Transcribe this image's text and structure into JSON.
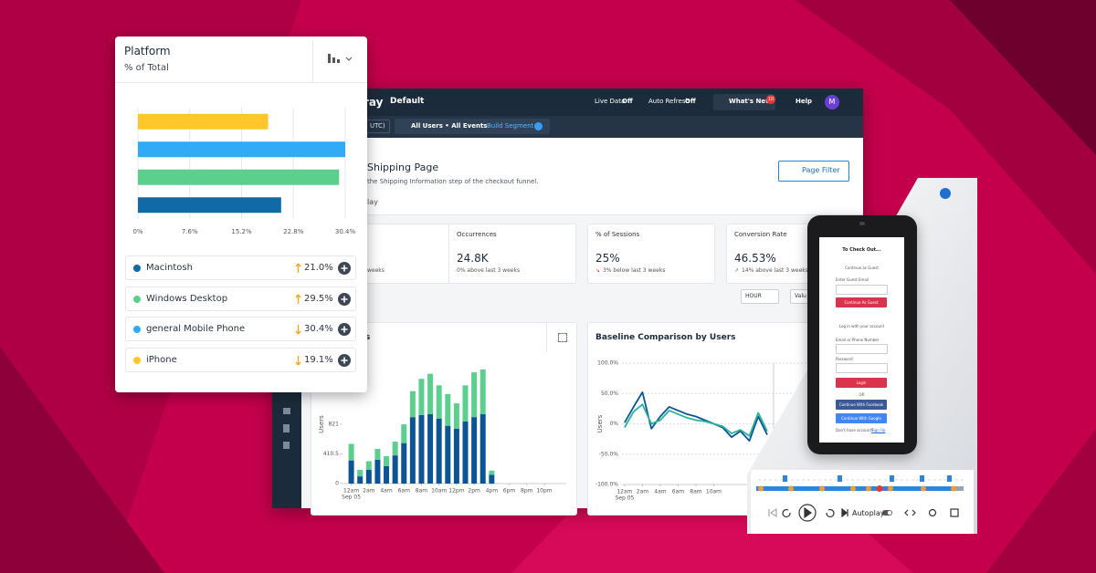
{
  "platform_card": {
    "title": "Platform",
    "subtitle": "% of Total",
    "chart": {
      "type": "bar",
      "orientation": "horizontal",
      "categories": [
        "Macintosh",
        "Windows Desktop",
        "general Mobile Phone",
        "iPhone"
      ],
      "values": [
        21.0,
        29.5,
        30.4,
        19.1
      ],
      "value_labels": [
        "21.0%",
        "29.5%",
        "30.4%",
        "19.1%"
      ],
      "colors": [
        "#0f6aa6",
        "#5ccf8e",
        "#33aaf5",
        "#ffc72c"
      ],
      "trends": [
        "up",
        "up",
        "down",
        "down"
      ],
      "xlim": [
        0,
        30.4
      ],
      "xticks": [
        {
          "value": 0,
          "label": "0%"
        },
        {
          "value": 7.6,
          "label": "7.6%"
        },
        {
          "value": 15.2,
          "label": "15.2%"
        },
        {
          "value": 22.8,
          "label": "22.8%"
        },
        {
          "value": 30.4,
          "label": "30.4%"
        }
      ],
      "grid": true
    }
  },
  "dashboard": {
    "logo": "ray",
    "view": "Default",
    "live_data": "Live Data",
    "live_data_state": "Off",
    "auto_refresh": "Auto Refresh",
    "auto_refresh_state": "Off",
    "whats_new": "What's New",
    "whats_new_badge": "10",
    "help": "Help",
    "avatar": "M",
    "timezone": "UTC)",
    "segment": "All Users • All Events",
    "build_segment": "Build Segment",
    "page_title": "Shipping Page",
    "page_description": "the Shipping Information step of the checkout funnel.",
    "tab": "lay",
    "page_filter": "Page Filter",
    "metrics": [
      {
        "change": "weeks"
      },
      {
        "label": "Occurrences",
        "value": "24.8K",
        "change": "0% above last 3 weeks"
      },
      {
        "label": "% of Sessions",
        "value": "25%",
        "change": "3% below last 3 weeks"
      },
      {
        "label": "Conversion Rate",
        "value": "46.53%",
        "change": "14% above last 3 weeks"
      }
    ],
    "interval": "HOUR",
    "value_select": "Valu",
    "users_chart": {
      "type": "bar",
      "stacked": true,
      "title": "s",
      "ylabel": "Users",
      "x_date": "Sep 05",
      "x": [
        0,
        1,
        2,
        3,
        4,
        5,
        6,
        7,
        8,
        9,
        10,
        11,
        12,
        13,
        14,
        15,
        16
      ],
      "series": [
        {
          "color": "#0d5494",
          "values": [
            320,
            100,
            190,
            330,
            240,
            390,
            560,
            920,
            950,
            960,
            900,
            800,
            760,
            860,
            920,
            960,
            120
          ]
        },
        {
          "color": "#5ccf8e",
          "values": [
            230,
            90,
            120,
            150,
            140,
            190,
            260,
            360,
            500,
            560,
            460,
            440,
            350,
            500,
            620,
            620,
            60
          ]
        }
      ],
      "xlim": [
        -1,
        24.5
      ],
      "xticks": [
        {
          "value": 0,
          "label": "12am"
        },
        {
          "value": 2,
          "label": "2am"
        },
        {
          "value": 4,
          "label": "4am"
        },
        {
          "value": 6,
          "label": "6am"
        },
        {
          "value": 8,
          "label": "8am"
        },
        {
          "value": 10,
          "label": "10am"
        },
        {
          "value": 12,
          "label": "12pm"
        },
        {
          "value": 14,
          "label": "2pm"
        },
        {
          "value": 16,
          "label": "4pm"
        },
        {
          "value": 18,
          "label": "6pm"
        },
        {
          "value": 20,
          "label": "8pm"
        },
        {
          "value": 22,
          "label": "10pm"
        }
      ],
      "ylim": [
        0,
        1642
      ],
      "yticks": [
        0,
        410.5,
        821
      ],
      "grid": false
    },
    "baseline_chart": {
      "type": "line",
      "title": "Baseline Comparison by Users",
      "ylabel": "Users",
      "x_date": "Sep 05",
      "x": [
        0,
        1,
        2,
        3,
        4,
        5,
        6,
        7,
        8,
        9,
        10,
        11,
        12,
        13,
        14,
        15,
        16
      ],
      "series": [
        {
          "color": "#0d5494",
          "values": [
            2,
            28,
            52,
            -8,
            12,
            28,
            22,
            16,
            12,
            6,
            0,
            -6,
            -22,
            -12,
            -28,
            12,
            -18
          ]
        },
        {
          "color": "#2bb39a",
          "values": [
            -6,
            20,
            32,
            0,
            6,
            22,
            16,
            10,
            6,
            4,
            0,
            -4,
            -16,
            -10,
            -20,
            18,
            -12
          ]
        }
      ],
      "xlim": [
        -0.3,
        24
      ],
      "xticks": [
        {
          "value": 0,
          "label": "12am"
        },
        {
          "value": 2,
          "label": "2am"
        },
        {
          "value": 4,
          "label": "4am"
        },
        {
          "value": 6,
          "label": "6am"
        },
        {
          "value": 8,
          "label": "8am"
        },
        {
          "value": 10,
          "label": "10am"
        }
      ],
      "ylim": [
        -100,
        100
      ],
      "yticks": [
        {
          "value": 100,
          "label": "100.0%"
        },
        {
          "value": 50,
          "label": "50.0%"
        },
        {
          "value": 0,
          "label": "0%"
        },
        {
          "value": -50,
          "label": "-50.0%"
        },
        {
          "value": -100,
          "label": "-100.0%"
        }
      ],
      "grid": true
    }
  },
  "replay": {
    "phone": {
      "title": "To Check Out...",
      "guest_heading": "Continue as Guest",
      "guest_email": "Enter Guest Email",
      "guest_button": "Continue As Guest",
      "login_heading": "Log in with your account",
      "email_label": "Email or Phone Number",
      "password_label": "Password",
      "login_button": "Login",
      "or": "OR",
      "facebook_button": "Continue With Facebook",
      "google_button": "Continue With Google",
      "signup_prompt": "Don't have account?",
      "signup_link": "Sign Up"
    },
    "autoplay": "Autoplay"
  }
}
